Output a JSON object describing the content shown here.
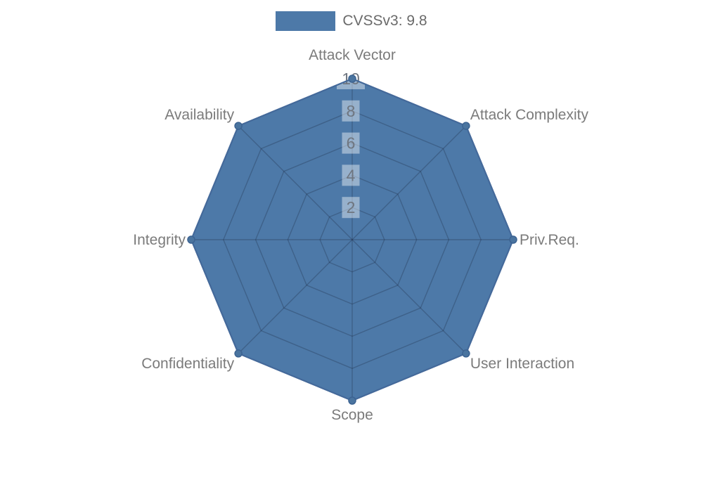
{
  "legend": {
    "items": [
      {
        "label": "CVSSv3: 9.8",
        "swatch_color": "#4d79a8"
      }
    ]
  },
  "chart_data": {
    "type": "radar",
    "title": "",
    "categories": [
      "Attack Vector",
      "Attack Complexity",
      "Priv.Req.",
      "User Interaction",
      "Scope",
      "Confidentiality",
      "Integrity",
      "Availability"
    ],
    "series": [
      {
        "name": "CVSSv3: 9.8",
        "values": [
          10,
          10,
          10,
          10,
          10,
          10,
          10,
          10
        ]
      }
    ],
    "ticks": [
      2,
      4,
      6,
      8,
      10
    ],
    "axis_min": 0,
    "axis_max": 10,
    "grid": true,
    "legend_position": "top",
    "colors": {
      "fill": "#4d79a8",
      "border": "#44699a",
      "point_fill": "#4a749f",
      "point_stroke": "#3c6392",
      "grid_line": "rgba(22,34,56,0.27)",
      "tick_box": "rgba(255,255,255,0.42)",
      "tick_text": "#6f7680",
      "label_text": "#7b7b7b"
    }
  }
}
